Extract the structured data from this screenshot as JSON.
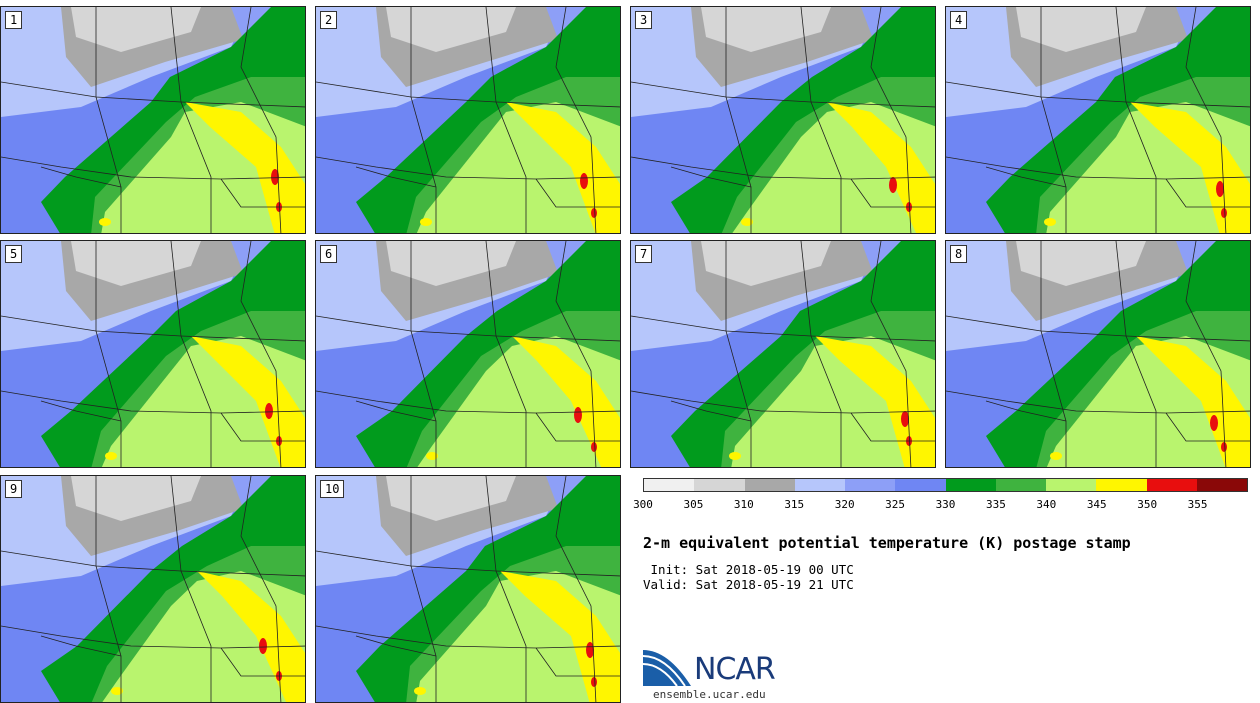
{
  "panels": [
    {
      "label": "1",
      "variant": 0
    },
    {
      "label": "2",
      "variant": 1
    },
    {
      "label": "3",
      "variant": 2
    },
    {
      "label": "4",
      "variant": 3
    },
    {
      "label": "5",
      "variant": 4
    },
    {
      "label": "6",
      "variant": 5
    },
    {
      "label": "7",
      "variant": 6
    },
    {
      "label": "8",
      "variant": 7
    },
    {
      "label": "9",
      "variant": 8
    },
    {
      "label": "10",
      "variant": 9
    }
  ],
  "colorbar": {
    "colors": [
      "#f0f0f0",
      "#d6d6d6",
      "#a8a8a8",
      "#b6c6fb",
      "#8d9ff7",
      "#6f86f3",
      "#019b1d",
      "#3fb33f",
      "#b9f46e",
      "#fff600",
      "#e80e0e",
      "#8a0808"
    ],
    "ticks": [
      "300",
      "305",
      "310",
      "315",
      "320",
      "325",
      "330",
      "335",
      "340",
      "345",
      "350",
      "355"
    ]
  },
  "title": "2-m equivalent potential temperature (K) postage stamp",
  "init": " Init: Sat 2018-05-19 00 UTC",
  "valid": "Valid: Sat 2018-05-19 21 UTC",
  "logo": {
    "text": "NCAR",
    "url": "ensemble.ucar.edu"
  },
  "map_colors": {
    "background": "#6f86f3",
    "light_blue": "#b6c6fb",
    "mid_blue": "#8d9ff7",
    "grey": "#a8a8a8",
    "light_grey": "#d6d6d6",
    "dark_green": "#019b1d",
    "green": "#3fb33f",
    "light_green": "#b9f46e",
    "yellow": "#fff600",
    "red": "#e80e0e",
    "boundary": "#222222"
  }
}
